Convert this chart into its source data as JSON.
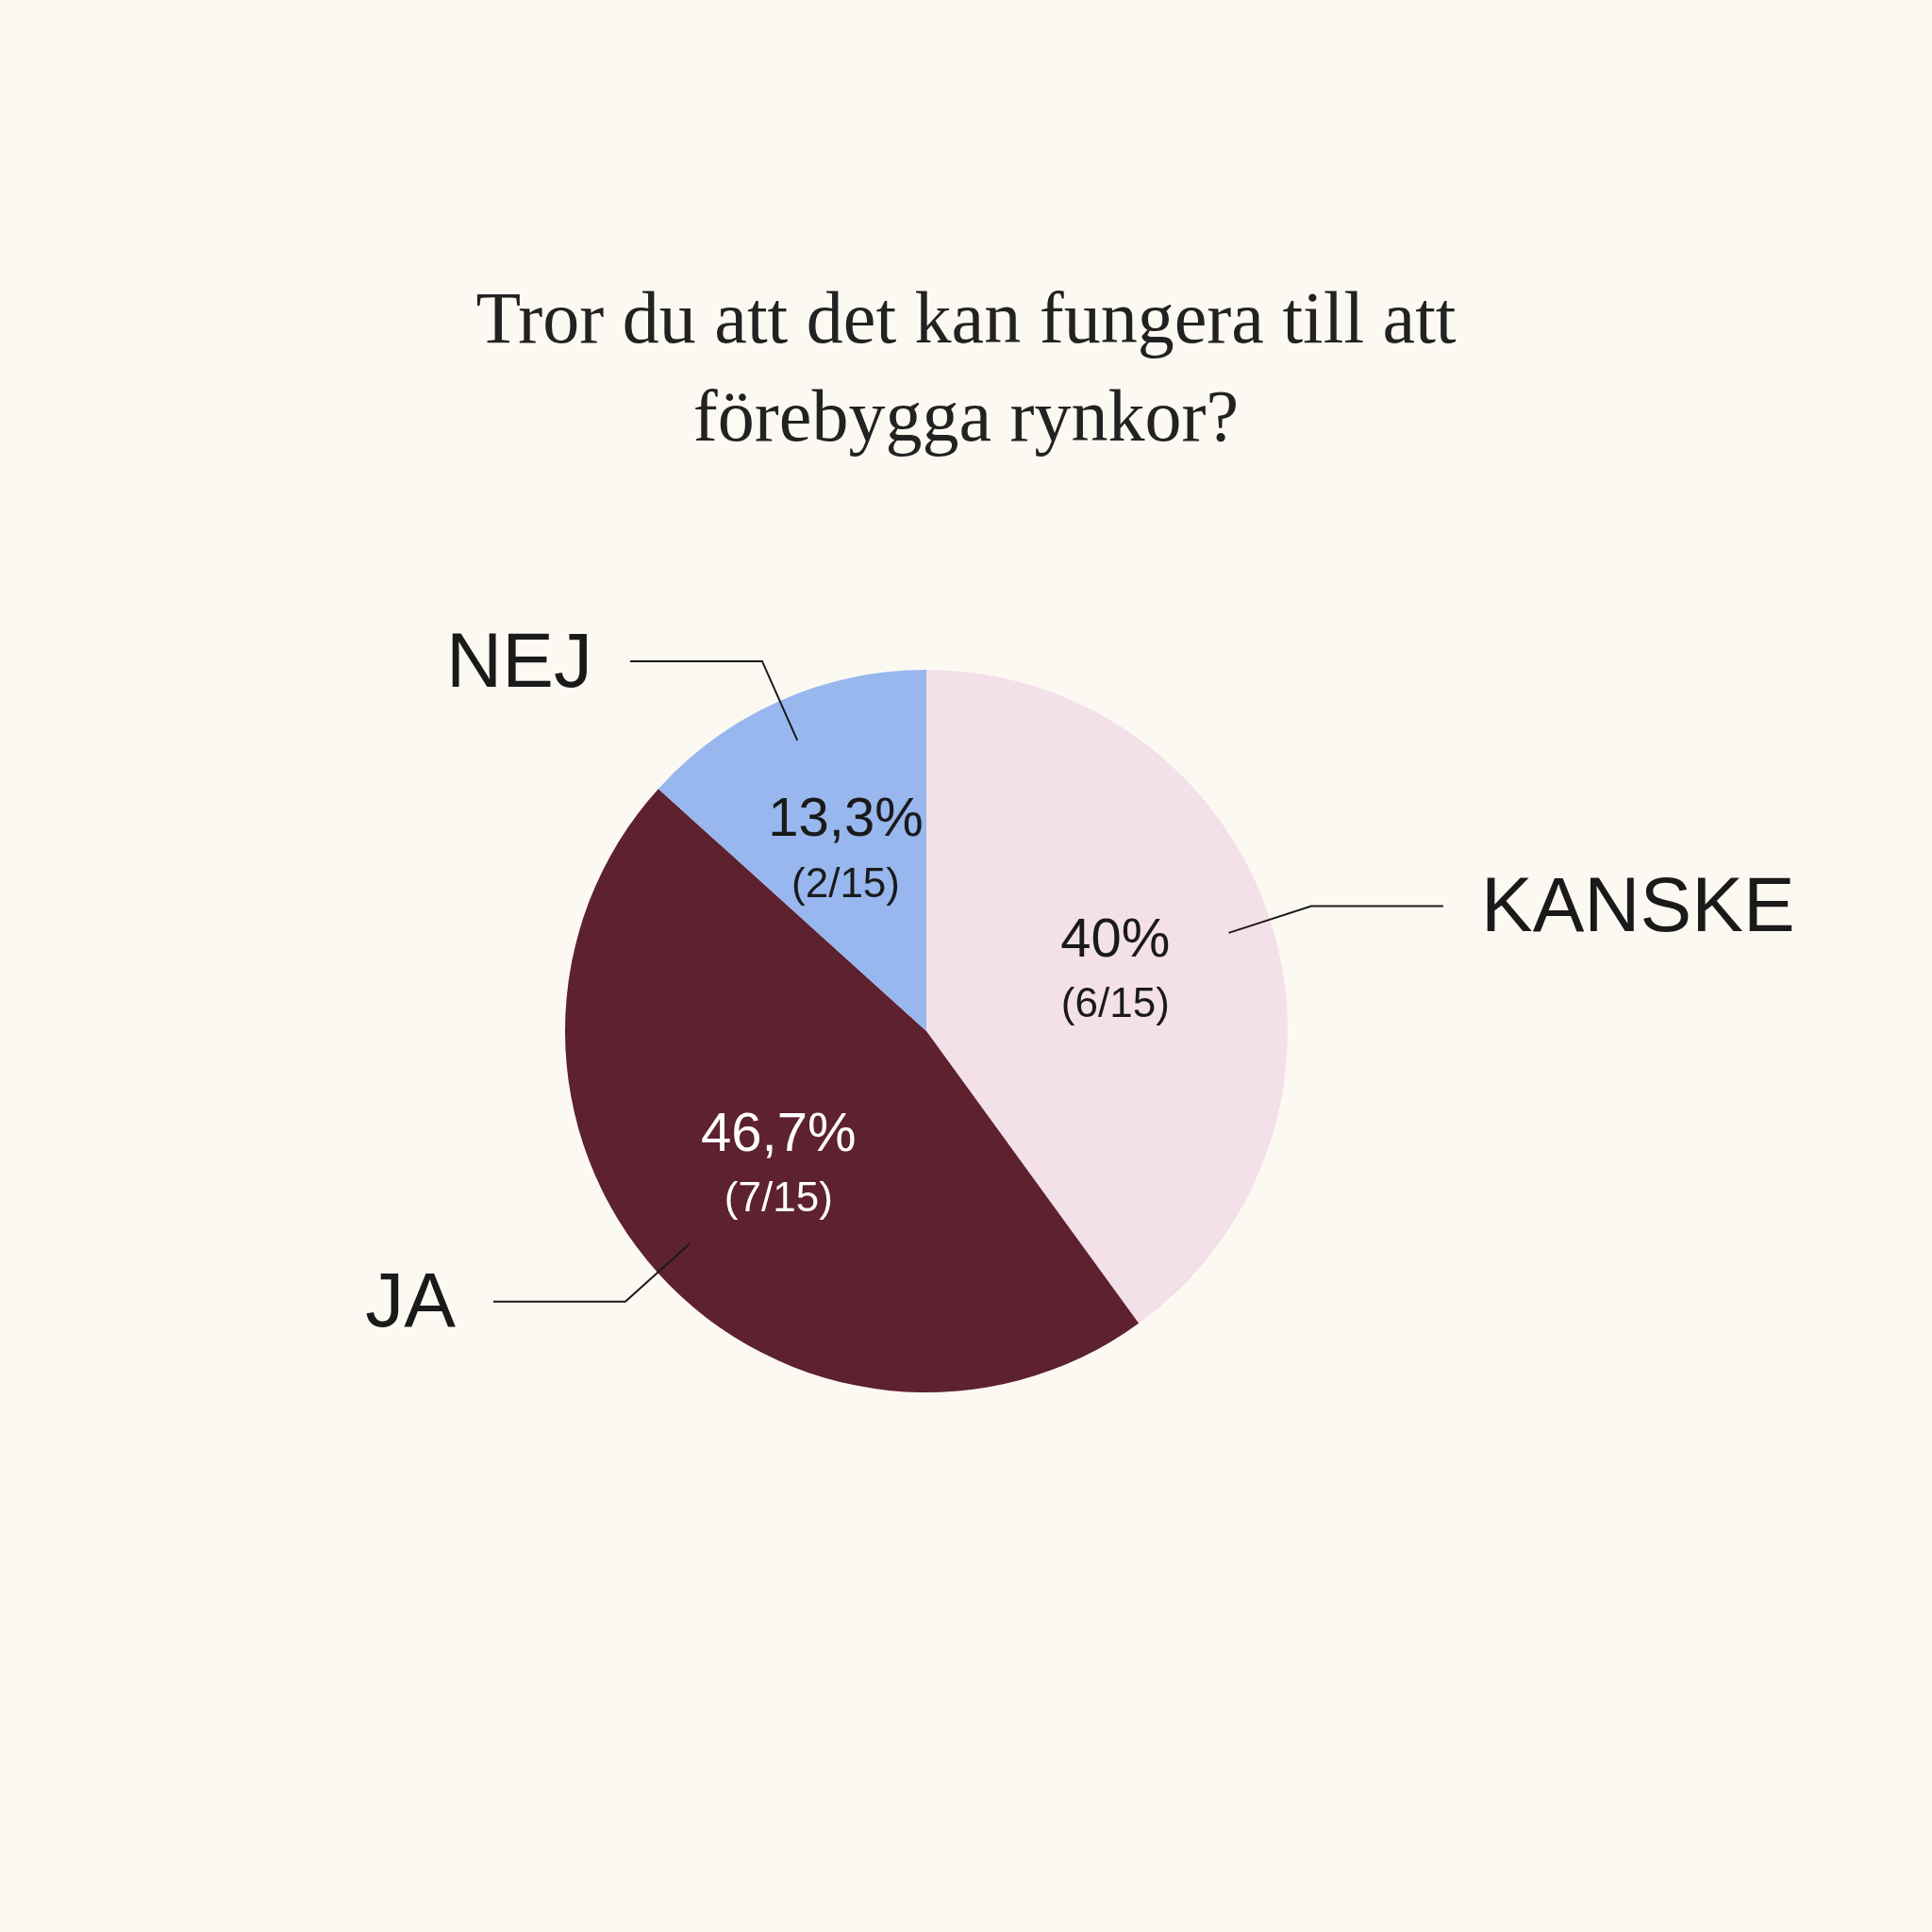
{
  "chart_data": {
    "type": "pie",
    "title": "Tror du att det kan fungera till att förebygga rynkor?",
    "categories": [
      "KANSKE",
      "JA",
      "NEJ"
    ],
    "values": [
      40,
      46.7,
      13.3
    ],
    "colors": [
      "#f4e0e9",
      "#5e2130",
      "#97b7ee"
    ],
    "value_labels": [
      "40%\n(6/15)",
      "46,7%\n(7/15)",
      "13,3%\n(2/15)"
    ],
    "legend": false
  }
}
